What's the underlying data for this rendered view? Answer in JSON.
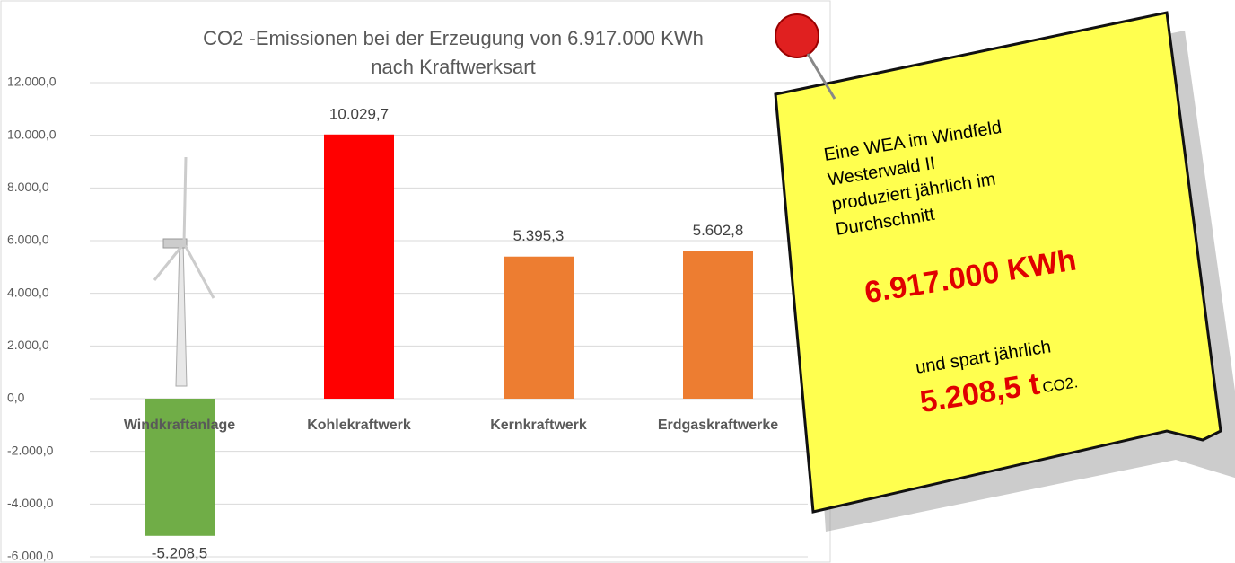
{
  "chart_data": {
    "type": "bar",
    "title": [
      "CO2 -Emissionen bei der Erzeugung von 6.917.000 KWh",
      "nach Kraftwerksart"
    ],
    "categories": [
      "Windkraftanlage",
      "Kohlekraftwerk",
      "Kernkraftwerk",
      "Erdgaskraftwerke"
    ],
    "values": [
      -5208.5,
      10029.7,
      5395.3,
      5602.8
    ],
    "value_labels": [
      "-5.208,5",
      "10.029,7",
      "5.395,3",
      "5.602,8"
    ],
    "colors": [
      "#70ad47",
      "#ff0000",
      "#ed7d31",
      "#ed7d31"
    ],
    "ylim": [
      -6000,
      12000
    ],
    "yticks": [
      {
        "value": -6000,
        "label": "-6.000,0"
      },
      {
        "value": -4000,
        "label": "-4.000,0"
      },
      {
        "value": -2000,
        "label": "-2.000,0"
      },
      {
        "value": 0,
        "label": "0,0"
      },
      {
        "value": 2000,
        "label": "2.000,0"
      },
      {
        "value": 4000,
        "label": "4.000,0"
      },
      {
        "value": 6000,
        "label": "6.000,0"
      },
      {
        "value": 8000,
        "label": "8.000,0"
      },
      {
        "value": 10000,
        "label": "10.000,0"
      },
      {
        "value": 12000,
        "label": "12.000,0"
      }
    ],
    "grid": true
  },
  "note": {
    "lines": [
      "Eine WEA im Windfeld",
      "Westerwald II",
      "produziert jährlich im",
      "Durchschnitt"
    ],
    "energy": "6.917.000 KWh",
    "savings_text": "und spart jährlich",
    "savings": "5.208,5 t",
    "unit": "CO2."
  }
}
